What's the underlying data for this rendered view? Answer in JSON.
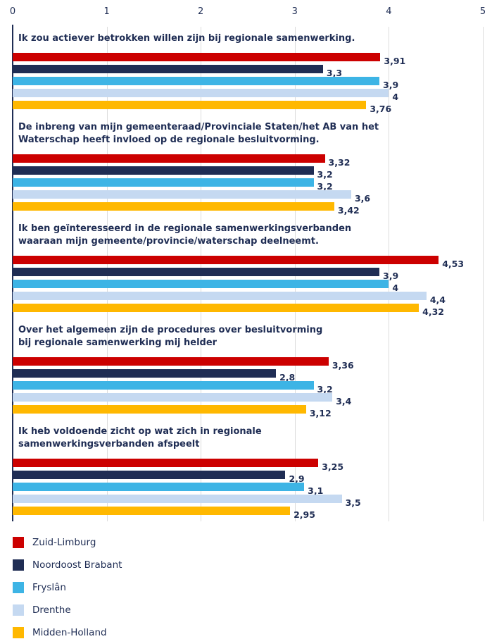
{
  "chart_data": {
    "type": "bar",
    "orientation": "horizontal",
    "categories": [
      "Ik zou actiever betrokken willen zijn bij regionale samenwerking.",
      "De inbreng van mijn gemeenteraad/Provinciale Staten/het AB van het\nWaterschap heeft invloed op de regionale besluitvorming.",
      "Ik ben geïnteresseerd in de regionale samenwerkingsverbanden\nwaaraan mijn gemeente/provincie/waterschap deelneemt.",
      "Over het algemeen zijn de procedures over besluitvorming\nbij regionale samenwerking mij helder",
      "Ik heb voldoende zicht op wat zich in regionale\nsamenwerkingsverbanden afspeelt"
    ],
    "series": [
      {
        "name": "Zuid-Limburg",
        "color": "#cc0000",
        "values": [
          3.91,
          3.32,
          4.53,
          3.36,
          3.25
        ],
        "value_labels": [
          "3,91",
          "3,32",
          "4,53",
          "3,36",
          "3,25"
        ]
      },
      {
        "name": "Noordoost Brabant",
        "color": "#1f2d54",
        "values": [
          3.3,
          3.2,
          3.9,
          2.8,
          2.9
        ],
        "value_labels": [
          "3,3",
          "3,2",
          "3,9",
          "2,8",
          "2,9"
        ]
      },
      {
        "name": "Fryslân",
        "color": "#3db4e5",
        "values": [
          3.9,
          3.2,
          4,
          3.2,
          3.1
        ],
        "value_labels": [
          "3,9",
          "3,2",
          "4",
          "3,2",
          "3,1"
        ]
      },
      {
        "name": "Drenthe",
        "color": "#c5d9f1",
        "values": [
          4,
          3.6,
          4.4,
          3.4,
          3.5
        ],
        "value_labels": [
          "4",
          "3,6",
          "4,4",
          "3,4",
          "3,5"
        ]
      },
      {
        "name": "Midden-Holland",
        "color": "#ffb800",
        "values": [
          3.76,
          3.42,
          4.32,
          3.12,
          2.95
        ],
        "value_labels": [
          "3,76",
          "3,42",
          "4,32",
          "3,12",
          "2,95"
        ]
      }
    ],
    "xlim": [
      0,
      5
    ],
    "xticks": [
      0,
      1,
      2,
      3,
      4,
      5
    ],
    "grid": true,
    "legend": "bottom-left"
  }
}
